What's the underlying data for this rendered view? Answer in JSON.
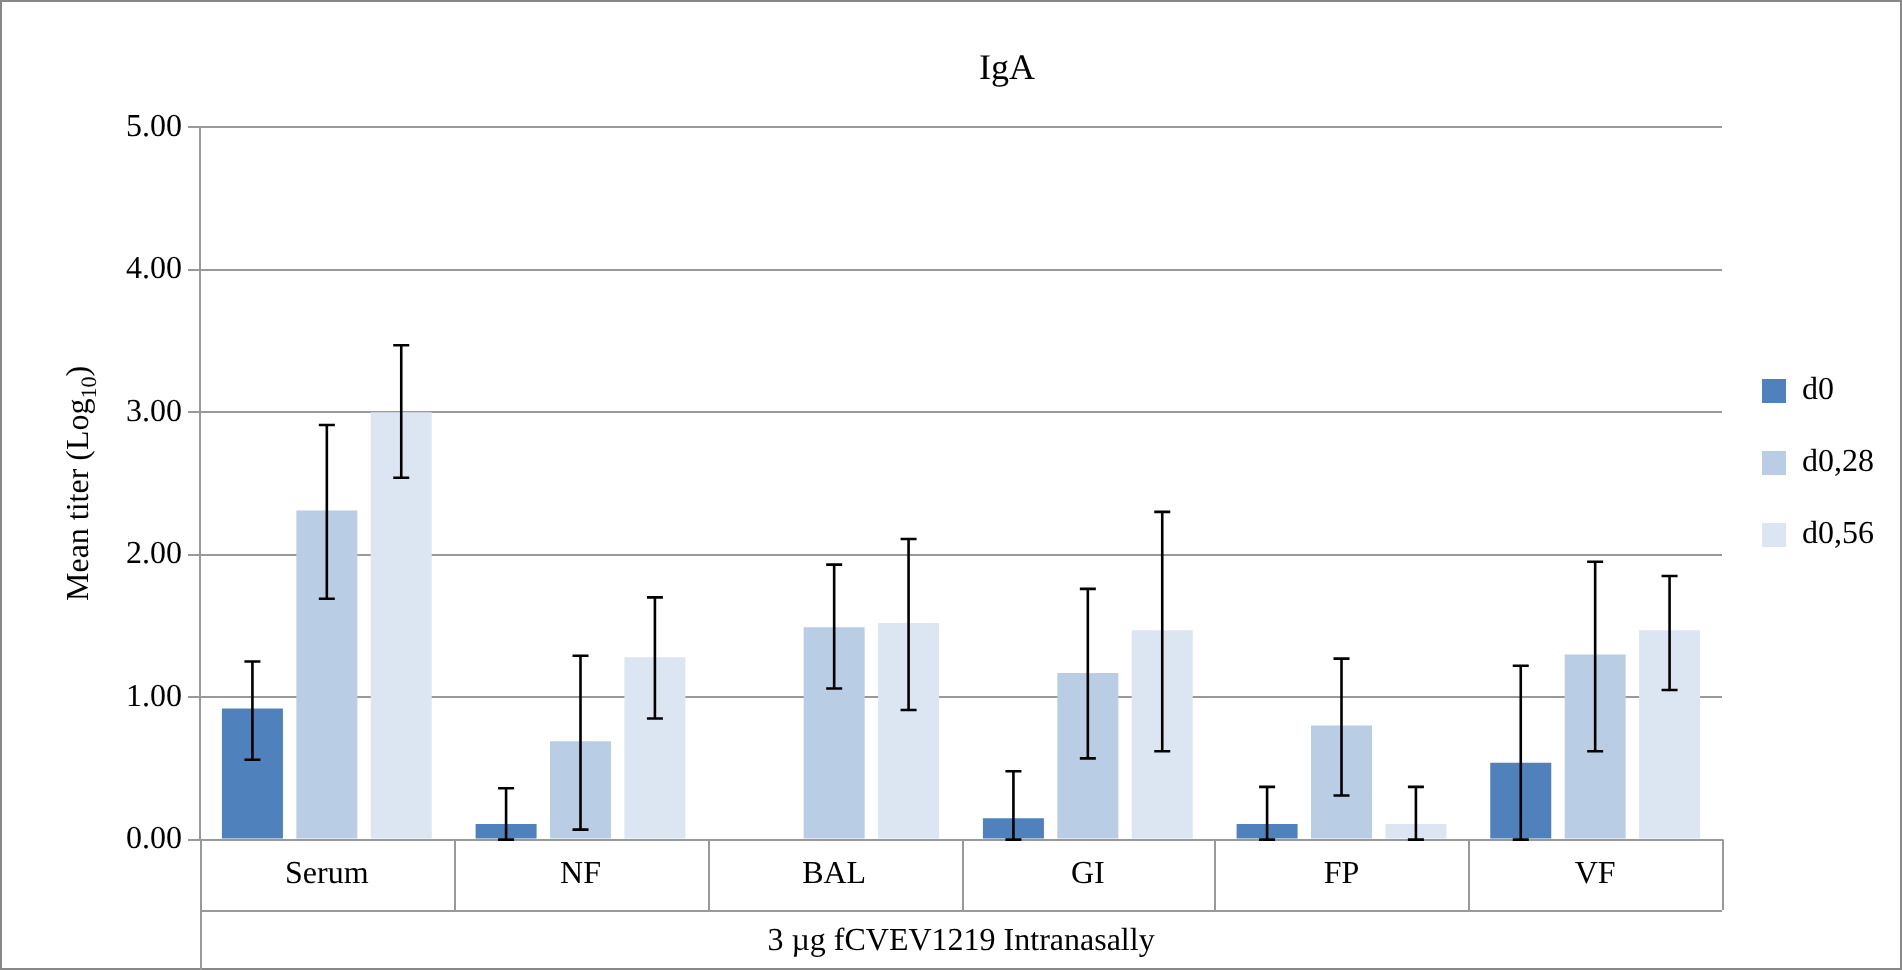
{
  "chart_data": {
    "type": "bar",
    "title": "IgA",
    "ylabel": "Mean titer (Log$_{10}$)",
    "xlabel": "3 µg fCVEV1219 Intranasally",
    "categories": [
      "Serum",
      "NF",
      "BAL",
      "GI",
      "FP",
      "VF"
    ],
    "series": [
      {
        "name": "d0",
        "color": "#4f81bd",
        "values": [
          0.92,
          0.11,
          0,
          0.15,
          0.11,
          0.54
        ],
        "errors": [
          [
            0.56,
            1.25
          ],
          [
            0,
            0.36
          ],
          null,
          [
            0,
            0.48
          ],
          [
            0,
            0.37
          ],
          [
            0,
            1.22
          ]
        ]
      },
      {
        "name": "d0,28",
        "color": "#b9cde5",
        "values": [
          2.31,
          0.69,
          1.49,
          1.17,
          0.8,
          1.3
        ],
        "errors": [
          [
            1.69,
            2.91
          ],
          [
            0.07,
            1.29
          ],
          [
            1.06,
            1.93
          ],
          [
            0.57,
            1.76
          ],
          [
            0.31,
            1.27
          ],
          [
            0.62,
            1.95
          ]
        ]
      },
      {
        "name": "d0,56",
        "color": "#dce6f2",
        "values": [
          3.0,
          1.28,
          1.52,
          1.47,
          0.11,
          1.47
        ],
        "errors": [
          [
            2.54,
            3.47
          ],
          [
            0.85,
            1.7
          ],
          [
            0.91,
            2.11
          ],
          [
            0.62,
            2.3
          ],
          [
            0,
            0.37
          ],
          [
            1.05,
            1.85
          ]
        ]
      }
    ],
    "ylim": [
      0,
      5
    ],
    "yticks": [
      {
        "value": 0,
        "label": "0.00"
      },
      {
        "value": 1,
        "label": "1.00"
      },
      {
        "value": 2,
        "label": "2.00"
      },
      {
        "value": 3,
        "label": "3.00"
      },
      {
        "value": 4,
        "label": "4.00"
      },
      {
        "value": 5,
        "label": "5.00"
      }
    ],
    "grid": "y",
    "legend": "right"
  }
}
